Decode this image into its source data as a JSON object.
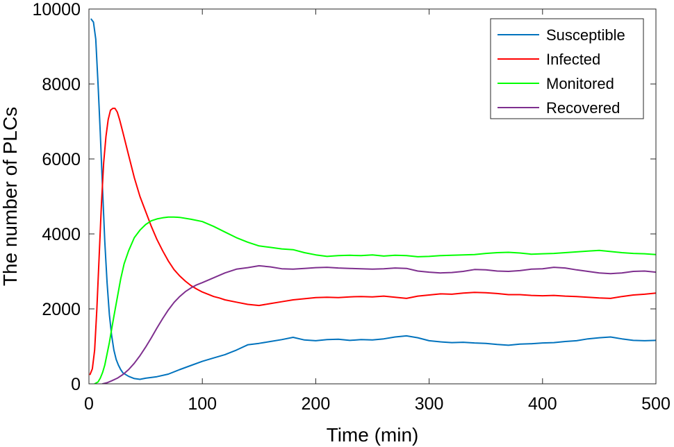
{
  "chart_data": {
    "type": "line",
    "title": "",
    "xlabel": "Time (min)",
    "ylabel": "The number of PLCs",
    "xlim": [
      0,
      500
    ],
    "ylim": [
      0,
      10000
    ],
    "xticks": [
      0,
      100,
      200,
      300,
      400,
      500
    ],
    "yticks": [
      0,
      2000,
      4000,
      6000,
      8000,
      10000
    ],
    "xtick_labels": [
      "0",
      "100",
      "200",
      "300",
      "400",
      "500"
    ],
    "ytick_labels": [
      "0",
      "2000",
      "4000",
      "6000",
      "8000",
      "10000"
    ],
    "grid": false,
    "legend_position": "top-right",
    "series": [
      {
        "name": "Susceptible",
        "color": "#0072BD",
        "x": [
          2,
          4,
          6,
          8,
          10,
          12,
          14,
          16,
          18,
          20,
          22,
          24,
          26,
          28,
          30,
          35,
          40,
          45,
          50,
          60,
          70,
          80,
          90,
          100,
          110,
          120,
          130,
          140,
          150,
          160,
          170,
          180,
          190,
          200,
          210,
          220,
          230,
          240,
          250,
          260,
          270,
          280,
          290,
          300,
          310,
          320,
          330,
          340,
          350,
          360,
          370,
          380,
          390,
          400,
          410,
          420,
          430,
          440,
          450,
          460,
          470,
          480,
          490,
          500
        ],
        "y": [
          9730,
          9650,
          9200,
          8000,
          6700,
          5200,
          3800,
          2700,
          1850,
          1300,
          900,
          650,
          500,
          380,
          290,
          200,
          140,
          120,
          150,
          190,
          260,
          380,
          490,
          600,
          690,
          780,
          900,
          1040,
          1080,
          1130,
          1180,
          1240,
          1170,
          1150,
          1180,
          1190,
          1160,
          1180,
          1170,
          1200,
          1250,
          1280,
          1230,
          1150,
          1120,
          1100,
          1110,
          1090,
          1080,
          1050,
          1030,
          1060,
          1070,
          1090,
          1100,
          1130,
          1150,
          1200,
          1230,
          1250,
          1200,
          1160,
          1150,
          1160
        ]
      },
      {
        "name": "Infected",
        "color": "#FF0000",
        "x": [
          1,
          3,
          5,
          7,
          9,
          11,
          13,
          15,
          17,
          19,
          21,
          23,
          25,
          27,
          30,
          35,
          40,
          45,
          50,
          55,
          60,
          65,
          70,
          75,
          80,
          85,
          90,
          95,
          100,
          105,
          110,
          115,
          120,
          130,
          140,
          150,
          160,
          170,
          180,
          190,
          200,
          210,
          220,
          230,
          240,
          250,
          260,
          270,
          280,
          290,
          300,
          310,
          320,
          330,
          340,
          350,
          360,
          370,
          380,
          390,
          400,
          410,
          420,
          430,
          440,
          450,
          460,
          470,
          480,
          490,
          500
        ],
        "y": [
          250,
          400,
          900,
          2000,
          3400,
          4800,
          5900,
          6600,
          7050,
          7300,
          7350,
          7350,
          7250,
          7050,
          6700,
          6100,
          5500,
          5000,
          4600,
          4200,
          3850,
          3550,
          3280,
          3050,
          2880,
          2740,
          2620,
          2530,
          2450,
          2390,
          2330,
          2290,
          2240,
          2180,
          2120,
          2090,
          2140,
          2190,
          2240,
          2270,
          2300,
          2310,
          2300,
          2320,
          2330,
          2320,
          2340,
          2310,
          2280,
          2340,
          2370,
          2400,
          2390,
          2420,
          2440,
          2430,
          2410,
          2380,
          2380,
          2360,
          2350,
          2360,
          2340,
          2330,
          2310,
          2290,
          2280,
          2330,
          2370,
          2390,
          2420
        ]
      },
      {
        "name": "Monitored",
        "color": "#00FF00",
        "x": [
          5,
          8,
          10,
          12,
          14,
          16,
          18,
          20,
          22,
          25,
          28,
          31,
          35,
          40,
          45,
          50,
          55,
          60,
          65,
          70,
          75,
          80,
          90,
          100,
          110,
          120,
          130,
          140,
          150,
          160,
          170,
          180,
          190,
          200,
          210,
          220,
          230,
          240,
          250,
          260,
          270,
          280,
          290,
          300,
          310,
          320,
          330,
          340,
          350,
          360,
          370,
          380,
          390,
          400,
          410,
          420,
          430,
          440,
          450,
          460,
          470,
          480,
          490,
          500
        ],
        "y": [
          0,
          50,
          150,
          300,
          500,
          800,
          1100,
          1450,
          1800,
          2300,
          2800,
          3200,
          3550,
          3900,
          4100,
          4250,
          4350,
          4400,
          4430,
          4450,
          4450,
          4440,
          4390,
          4330,
          4200,
          4050,
          3900,
          3780,
          3680,
          3640,
          3600,
          3580,
          3500,
          3440,
          3400,
          3420,
          3430,
          3420,
          3440,
          3410,
          3430,
          3420,
          3390,
          3400,
          3420,
          3430,
          3440,
          3450,
          3480,
          3500,
          3510,
          3490,
          3460,
          3470,
          3480,
          3500,
          3520,
          3540,
          3560,
          3530,
          3500,
          3480,
          3470,
          3450
        ]
      },
      {
        "name": "Recovered",
        "color": "#7E2F8E",
        "x": [
          12,
          16,
          20,
          25,
          30,
          35,
          40,
          45,
          50,
          55,
          60,
          65,
          70,
          75,
          80,
          85,
          90,
          95,
          100,
          110,
          120,
          130,
          140,
          150,
          160,
          170,
          180,
          190,
          200,
          210,
          220,
          230,
          240,
          250,
          260,
          270,
          280,
          290,
          300,
          310,
          320,
          330,
          340,
          350,
          360,
          370,
          380,
          390,
          400,
          410,
          420,
          430,
          440,
          450,
          460,
          470,
          480,
          490,
          500
        ],
        "y": [
          0,
          30,
          80,
          150,
          250,
          380,
          550,
          750,
          980,
          1230,
          1490,
          1740,
          1970,
          2170,
          2330,
          2460,
          2560,
          2640,
          2700,
          2830,
          2960,
          3060,
          3100,
          3150,
          3120,
          3070,
          3060,
          3080,
          3100,
          3110,
          3090,
          3080,
          3070,
          3060,
          3070,
          3090,
          3080,
          3010,
          2980,
          2960,
          2970,
          3000,
          3050,
          3040,
          3010,
          3000,
          3020,
          3060,
          3070,
          3110,
          3090,
          3040,
          3000,
          2960,
          2940,
          2960,
          3000,
          3010,
          2980
        ]
      }
    ]
  }
}
